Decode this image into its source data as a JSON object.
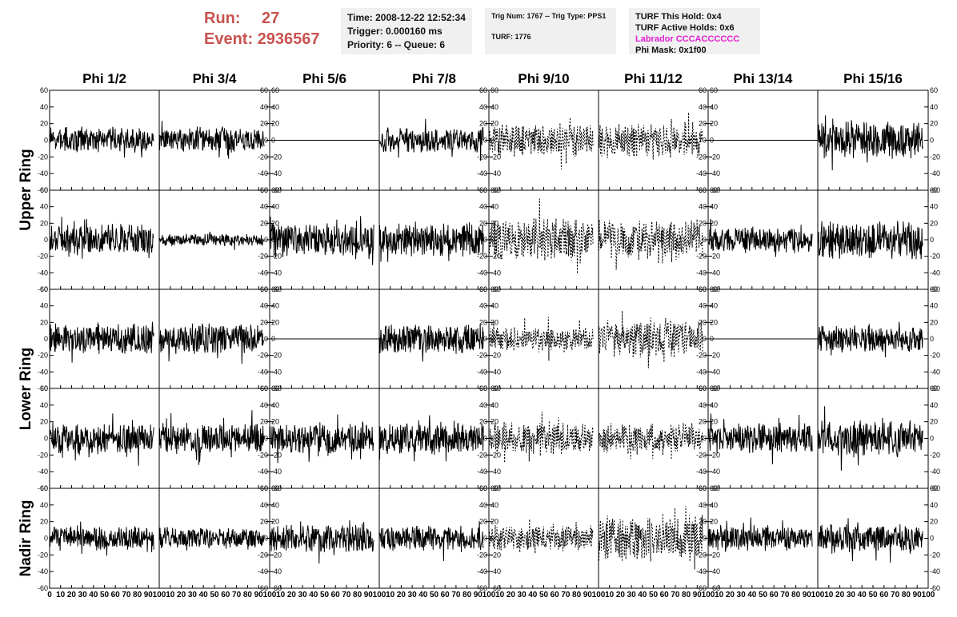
{
  "header": {
    "run_label": "Run:",
    "run_value": "27",
    "event_label": "Event:",
    "event_value": "2936567",
    "box1": [
      "Time: 2008-12-22 12:52:34",
      "Trigger: 0.000160 ms",
      "Priority: 6 -- Queue: 6"
    ],
    "box2": [
      "Trig Num: 1767 -- Trig Type: PPS1",
      "TURF: 1776"
    ],
    "box3": [
      "TURF This Hold: 0x4",
      "TURF Active Holds: 0x6",
      "Labrador CCCACCCCCC",
      "Phi Mask: 0x1f00"
    ],
    "colors": {
      "run": "#c8534f",
      "labrador": "#e01fd0",
      "panel": "#f0f0f0"
    }
  },
  "chart_data": {
    "type": "line",
    "columns": [
      "Phi 1/2",
      "Phi 3/4",
      "Phi 5/6",
      "Phi 7/8",
      "Phi 9/10",
      "Phi 11/12",
      "Phi 13/14",
      "Phi 15/16"
    ],
    "ring_labels": [
      {
        "text": "Upper Ring",
        "rows": [
          0,
          1
        ]
      },
      {
        "text": "Lower Ring",
        "rows": [
          2,
          3
        ]
      },
      {
        "text": "Nadir Ring",
        "rows": [
          4
        ]
      }
    ],
    "xlim": [
      0,
      100
    ],
    "ylim": [
      -60,
      60
    ],
    "yticks": [
      -60,
      -40,
      -20,
      0,
      20,
      40,
      60
    ],
    "xticks": [
      0,
      10,
      20,
      30,
      40,
      50,
      60,
      70,
      80,
      90,
      100
    ],
    "samples_per_trace": 260,
    "x_extent": 95,
    "grid": false,
    "dashed_columns": [
      4,
      5
    ],
    "traces_note": "amplitude envelope per cell (approximate peak in data units); 0 means flat channel",
    "amplitude": [
      [
        16,
        16,
        0,
        16,
        22,
        22,
        0,
        24
      ],
      [
        20,
        8,
        22,
        22,
        30,
        26,
        16,
        26
      ],
      [
        20,
        20,
        0,
        20,
        16,
        26,
        0,
        18
      ],
      [
        20,
        20,
        20,
        20,
        20,
        20,
        20,
        24
      ],
      [
        16,
        14,
        18,
        16,
        16,
        30,
        16,
        18
      ]
    ]
  }
}
